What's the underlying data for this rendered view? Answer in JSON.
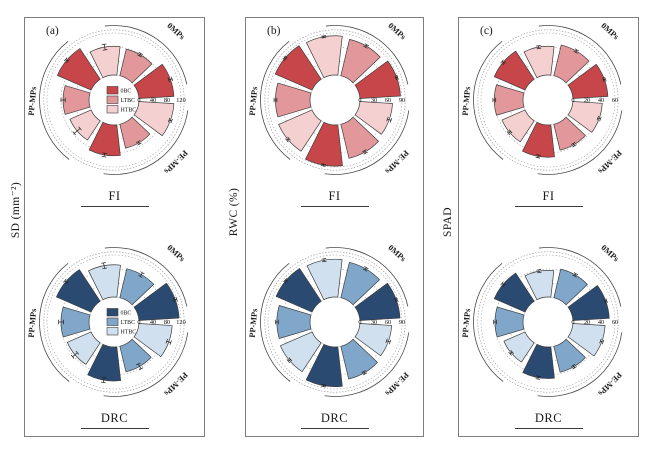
{
  "panels": [
    {
      "letter": "(a)",
      "ylabel": "SD (mm⁻²)"
    },
    {
      "letter": "(b)",
      "ylabel": "RWC (%)"
    },
    {
      "letter": "(c)",
      "ylabel": "SPAD"
    }
  ],
  "series_labels": [
    "0BC",
    "LTBC",
    "HTBC"
  ],
  "group_labels": [
    "0MPs",
    "PP-MPs",
    "PE-MPs"
  ],
  "palette": {
    "red": {
      "0BC": "#c7464a",
      "LTBC": "#e2989a",
      "HTBC": "#f4d0d1"
    },
    "blue": {
      "0BC": "#2b4a72",
      "LTBC": "#80a7ca",
      "HTBC": "#d1e0ee"
    },
    "wedge_stroke": "#3d3d3d",
    "grid": "#9a9a9a",
    "arc": "#4a4a4a"
  },
  "chart_data": [
    {
      "type": "polar_bar",
      "panel": "(a)",
      "measure": "SD (mm⁻²)",
      "irrigation": "FI",
      "scheme": "red",
      "rmax": 120,
      "ticks": [
        0,
        40,
        80,
        120
      ],
      "legend_visible": true,
      "series_labels": [
        "0BC",
        "LTBC",
        "HTBC"
      ],
      "groups": [
        {
          "label": "0MPs",
          "values": [
            100,
            78,
            82
          ],
          "errors": [
            5,
            4,
            8
          ]
        },
        {
          "label": "PP-MPs",
          "values": [
            105,
            74,
            66
          ],
          "errors": [
            4,
            6,
            11
          ]
        },
        {
          "label": "PE-MPs",
          "values": [
            88,
            70,
            100
          ],
          "errors": [
            5,
            4,
            4
          ]
        }
      ]
    },
    {
      "type": "polar_bar",
      "panel": "(a)",
      "measure": "SD (mm⁻²)",
      "irrigation": "DRC",
      "scheme": "blue",
      "rmax": 120,
      "ticks": [
        0,
        40,
        80,
        120
      ],
      "legend_visible": true,
      "series_labels": [
        "0BC",
        "LTBC",
        "HTBC"
      ],
      "groups": [
        {
          "label": "0MPs",
          "values": [
            115,
            85,
            92
          ],
          "errors": [
            4,
            6,
            8
          ]
        },
        {
          "label": "PP-MPs",
          "values": [
            108,
            80,
            74
          ],
          "errors": [
            4,
            7,
            9
          ]
        },
        {
          "label": "PE-MPs",
          "values": [
            97,
            75,
            95
          ],
          "errors": [
            7,
            8,
            6
          ]
        }
      ]
    },
    {
      "type": "polar_bar",
      "panel": "(b)",
      "measure": "RWC (%)",
      "irrigation": "FI",
      "scheme": "red",
      "rmax": 90,
      "ticks": [
        0,
        30,
        60,
        90
      ],
      "legend_visible": false,
      "series_labels": [
        "0BC",
        "LTBC",
        "HTBC"
      ],
      "groups": [
        {
          "label": "0MPs",
          "values": [
            87,
            80,
            84
          ],
          "errors": [
            2,
            3,
            2
          ]
        },
        {
          "label": "PP-MPs",
          "values": [
            86,
            74,
            78
          ],
          "errors": [
            2,
            3,
            3
          ]
        },
        {
          "label": "PE-MPs",
          "values": [
            88,
            75,
            70
          ],
          "errors": [
            2,
            3,
            4
          ]
        }
      ]
    },
    {
      "type": "polar_bar",
      "panel": "(b)",
      "measure": "RWC (%)",
      "irrigation": "DRC",
      "scheme": "blue",
      "rmax": 90,
      "ticks": [
        0,
        30,
        60,
        90
      ],
      "legend_visible": false,
      "series_labels": [
        "0BC",
        "LTBC",
        "HTBC"
      ],
      "groups": [
        {
          "label": "0MPs",
          "values": [
            86,
            78,
            81
          ],
          "errors": [
            2,
            3,
            3
          ]
        },
        {
          "label": "PP-MPs",
          "values": [
            84,
            71,
            74
          ],
          "errors": [
            2,
            3,
            3
          ]
        },
        {
          "label": "PE-MPs",
          "values": [
            85,
            72,
            68
          ],
          "errors": [
            2,
            3,
            4
          ]
        }
      ]
    },
    {
      "type": "polar_bar",
      "panel": "(c)",
      "measure": "SPAD",
      "irrigation": "FI",
      "scheme": "red",
      "rmax": 60,
      "ticks": [
        0,
        20,
        40,
        60
      ],
      "legend_visible": false,
      "series_labels": [
        "0BC",
        "LTBC",
        "HTBC"
      ],
      "groups": [
        {
          "label": "0MPs",
          "values": [
            50,
            45,
            41
          ],
          "errors": [
            1.5,
            2,
            2
          ]
        },
        {
          "label": "PP-MPs",
          "values": [
            48,
            41,
            36
          ],
          "errors": [
            2,
            2,
            2
          ]
        },
        {
          "label": "PE-MPs",
          "values": [
            46,
            38,
            42
          ],
          "errors": [
            2,
            2,
            2
          ]
        }
      ]
    },
    {
      "type": "polar_bar",
      "panel": "(c)",
      "measure": "SPAD",
      "irrigation": "DRC",
      "scheme": "blue",
      "rmax": 60,
      "ticks": [
        0,
        20,
        40,
        60
      ],
      "legend_visible": false,
      "series_labels": [
        "0BC",
        "LTBC",
        "HTBC"
      ],
      "groups": [
        {
          "label": "0MPs",
          "values": [
            52,
            42,
            38
          ],
          "errors": [
            1.5,
            2,
            2
          ]
        },
        {
          "label": "PP-MPs",
          "values": [
            48,
            40,
            33
          ],
          "errors": [
            2,
            2,
            2
          ]
        },
        {
          "label": "PE-MPs",
          "values": [
            45,
            38,
            46
          ],
          "errors": [
            2,
            2,
            2
          ]
        }
      ]
    }
  ]
}
